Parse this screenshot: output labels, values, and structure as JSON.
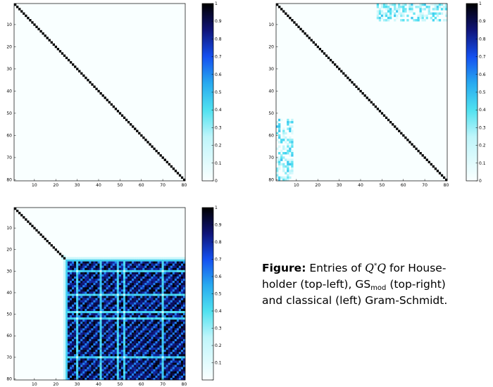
{
  "chart_data": [
    {
      "type": "heatmap",
      "position": "top-left",
      "pattern": "identity",
      "size": 80,
      "xticks": [
        10,
        20,
        30,
        40,
        50,
        60,
        70,
        80
      ],
      "yticks": [
        10,
        20,
        30,
        40,
        50,
        60,
        70,
        80
      ],
      "colorbar_ticks": [
        "1",
        "0.9",
        "0.8",
        "0.7",
        "0.6",
        "0.5",
        "0.4",
        "0.3",
        "0.2",
        "0.1",
        "0"
      ],
      "color_range": [
        0,
        1
      ]
    },
    {
      "type": "heatmap",
      "position": "top-right",
      "pattern": "modified-gram-schmidt",
      "size": 80,
      "off_diagonal_blocks": [
        {
          "rows": [
            1,
            8
          ],
          "cols": [
            48,
            80
          ],
          "max_value": 0.4
        },
        {
          "rows": [
            53,
            80
          ],
          "cols": [
            1,
            8
          ],
          "max_value": 0.4
        }
      ],
      "xticks": [
        10,
        20,
        30,
        40,
        50,
        60,
        70,
        80
      ],
      "yticks": [
        10,
        20,
        30,
        40,
        50,
        60,
        70,
        80
      ],
      "colorbar_ticks": [
        "1",
        "0.9",
        "0.8",
        "0.7",
        "0.6",
        "0.5",
        "0.4",
        "0.3",
        "0.2",
        "0.1",
        "0"
      ],
      "color_range": [
        0,
        1
      ]
    },
    {
      "type": "heatmap",
      "position": "bottom-left",
      "pattern": "classical-gram-schmidt",
      "size": 80,
      "loss_of_orthogonality_from": 24,
      "light_lines": [
        30,
        41,
        49,
        52,
        70
      ],
      "xticks": [
        10,
        20,
        30,
        40,
        50,
        60,
        70,
        80
      ],
      "yticks": [
        10,
        20,
        30,
        40,
        50,
        60,
        70,
        80
      ],
      "colorbar_ticks": [
        "1",
        "0.9",
        "0.8",
        "0.7",
        "0.6",
        "0.5",
        "0.4",
        "0.3",
        "0.2",
        "0.1",
        ""
      ],
      "color_range": [
        0,
        1
      ]
    }
  ],
  "caption": {
    "label": "Figure:",
    "text_1": "Entries of",
    "q1": "Q",
    "star": "*",
    "q2": "Q",
    "text_2": "for House-",
    "line2_a": "holder (top-left), GS",
    "sub": "mod",
    "line2_b": "(top-right)",
    "line3": "and classical (left) Gram-Schmidt."
  }
}
